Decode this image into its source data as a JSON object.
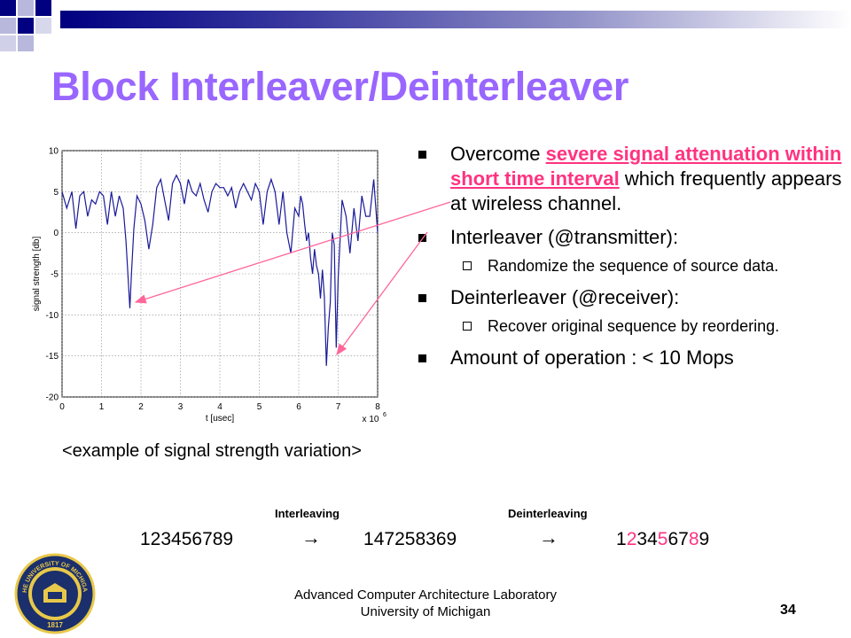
{
  "slide": {
    "title": "Block Interleaver/Deinterleaver",
    "caption": "<example of signal strength variation>",
    "page_number": "34"
  },
  "bullets": [
    {
      "pre": "Overcome ",
      "highlight": "severe signal attenuation within short time interval",
      "post": " which frequently appears at wireless channel.",
      "subs": []
    },
    {
      "pre": "Interleaver (@transmitter):",
      "subs": [
        "Randomize the sequence of source data."
      ]
    },
    {
      "pre": "Deinterleaver (@receiver):",
      "subs": [
        "Recover original sequence by reordering."
      ]
    },
    {
      "pre": "Amount of operation : < 10 Mops",
      "subs": []
    }
  ],
  "sequence": {
    "interleaving_label": "Interleaving",
    "deinterleaving_label": "Deinterleaving",
    "original": "123456789",
    "arrow": "→",
    "interleaved": "147258369",
    "restored": "123456789"
  },
  "footer": {
    "line1": "Advanced Computer Architecture Laboratory",
    "line2": "University of Michigan"
  },
  "seal": {
    "text_top": "THE UNIVERSITY OF MICHIGAN",
    "year": "1817"
  },
  "colors": {
    "title": "#9966ff",
    "highlight": "#ff3380",
    "plot_line": "#1a1a99",
    "seal_gold": "#e8c84a"
  },
  "chart_data": {
    "type": "line",
    "xlabel": "t [usec]",
    "ylabel": "signal strength [db]",
    "x_multiplier_label": "x 10",
    "x_multiplier_exp": "6",
    "xlim": [
      0,
      8
    ],
    "ylim": [
      -20,
      10
    ],
    "xticks": [
      "0",
      "1",
      "2",
      "3",
      "4",
      "5",
      "6",
      "7",
      "8"
    ],
    "yticks": [
      "10",
      "5",
      "0",
      "-5",
      "-10",
      "-15",
      "-20"
    ],
    "grid": true,
    "series": [
      {
        "x": [
          0,
          0.12,
          0.25,
          0.35,
          0.45,
          0.55,
          0.65,
          0.75,
          0.85,
          0.95,
          1.05,
          1.15,
          1.25,
          1.35,
          1.45,
          1.55,
          1.62,
          1.68,
          1.72,
          1.76,
          1.82,
          1.9,
          2.0,
          2.1,
          2.2,
          2.3,
          2.4,
          2.5,
          2.6,
          2.7,
          2.8,
          2.9,
          3.0,
          3.1,
          3.2,
          3.3,
          3.4,
          3.5,
          3.6,
          3.7,
          3.8,
          3.9,
          4.0,
          4.1,
          4.2,
          4.3,
          4.4,
          4.5,
          4.6,
          4.7,
          4.8,
          4.9,
          5.0,
          5.1,
          5.2,
          5.3,
          5.4,
          5.5,
          5.6,
          5.7,
          5.8,
          5.9,
          6.0,
          6.05,
          6.1,
          6.15,
          6.2,
          6.25,
          6.3,
          6.35,
          6.4,
          6.45,
          6.5,
          6.55,
          6.6,
          6.65,
          6.7,
          6.75,
          6.8,
          6.85,
          6.9,
          6.95,
          7.0,
          7.1,
          7.2,
          7.3,
          7.4,
          7.5,
          7.6,
          7.7,
          7.8,
          7.9,
          8.0
        ],
        "y": [
          5,
          3,
          5,
          0.5,
          4.5,
          5,
          2,
          4,
          3.5,
          5,
          4.5,
          1,
          5,
          2,
          4.5,
          3,
          -1,
          -6,
          -9.2,
          -5,
          0.5,
          4.5,
          3.5,
          1.5,
          -2,
          1,
          5.5,
          6.5,
          4,
          1.5,
          6,
          7,
          6,
          3.5,
          6.5,
          5,
          4.5,
          6,
          4,
          2.5,
          5,
          6,
          5.5,
          5.5,
          4.5,
          5.5,
          3,
          5,
          6,
          5,
          4,
          6,
          5,
          1,
          5,
          6.5,
          5,
          1,
          5,
          0,
          -2.5,
          3,
          2,
          4.5,
          3.5,
          1,
          -1,
          0,
          -3,
          -5,
          -2,
          -4,
          -5,
          -8,
          -4.5,
          -7.8,
          -16.2,
          -11.5,
          -8.5,
          0,
          -1.5,
          -14,
          -5.5,
          4,
          2,
          -2.5,
          3,
          -1,
          4.5,
          2,
          2,
          6.5,
          0
        ]
      }
    ],
    "annotations": [
      "arrow from text to dip near t=1.72",
      "arrow from text to dip near t=6.95"
    ]
  }
}
